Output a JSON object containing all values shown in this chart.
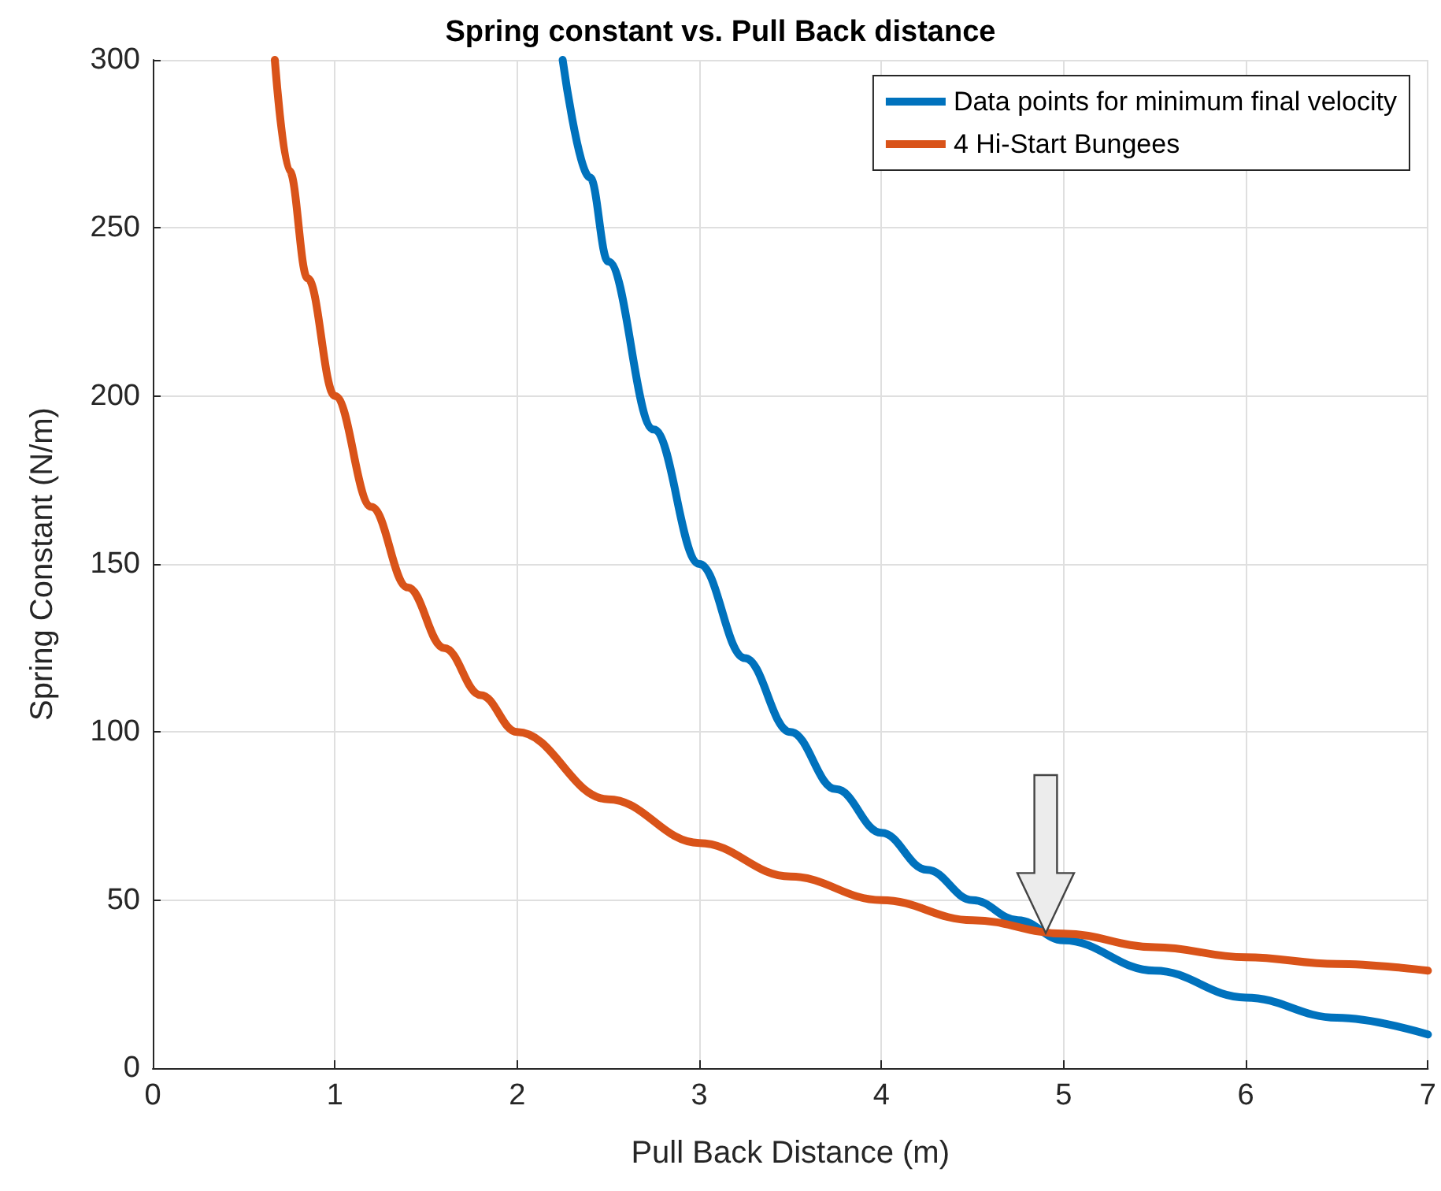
{
  "chart_data": {
    "type": "line",
    "title": "Spring constant vs. Pull Back distance",
    "xlabel": "Pull Back Distance (m)",
    "ylabel": "Spring Constant (N/m)",
    "xlim": [
      0,
      7
    ],
    "xticks": [
      0,
      1,
      2,
      3,
      4,
      5,
      6,
      7
    ],
    "ylim": [
      0,
      300
    ],
    "yticks": [
      0,
      50,
      100,
      150,
      200,
      250,
      300
    ],
    "grid": true,
    "legend": "top right",
    "marker": "none",
    "line_style": "solid",
    "series": [
      {
        "name": "Data points for minimum final velocity",
        "color": "#0072bd",
        "x": [
          2.25,
          2.4,
          2.5,
          2.75,
          3,
          3.25,
          3.5,
          3.75,
          4,
          4.25,
          4.5,
          4.75,
          5,
          5.5,
          6,
          6.5,
          7
        ],
        "values": [
          300,
          265,
          240,
          190,
          150,
          122,
          100,
          83,
          70,
          59,
          50,
          44,
          38,
          29,
          21,
          15,
          10
        ]
      },
      {
        "name": "4 Hi-Start Bungees",
        "color": "#d95319",
        "x": [
          0.67,
          0.75,
          0.85,
          1,
          1.2,
          1.4,
          1.6,
          1.8,
          2,
          2.5,
          3,
          3.5,
          4,
          4.5,
          5,
          5.5,
          6,
          6.5,
          7
        ],
        "values": [
          300,
          267,
          235,
          200,
          167,
          143,
          125,
          111,
          100,
          80,
          67,
          57,
          50,
          44,
          40,
          36,
          33,
          31,
          29
        ]
      }
    ]
  }
}
